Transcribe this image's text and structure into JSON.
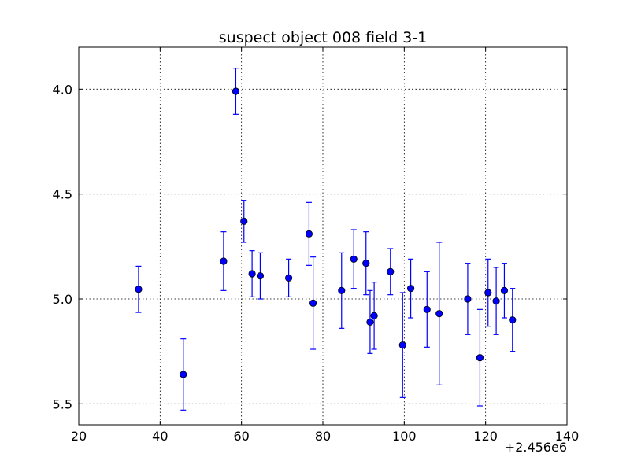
{
  "chart_data": {
    "type": "scatter",
    "title": "suspect object 008 field 3-1",
    "xlabel": "",
    "ylabel": "",
    "x_offset_label": "+2.456e6",
    "xlim": [
      20,
      140
    ],
    "ylim": [
      5.6,
      3.8
    ],
    "y_inverted": true,
    "grid": true,
    "x_ticks": [
      20,
      40,
      60,
      80,
      100,
      120,
      140
    ],
    "y_ticks": [
      4.0,
      4.5,
      5.0,
      5.5
    ],
    "x_tick_labels": [
      "20",
      "40",
      "60",
      "80",
      "100",
      "120",
      "140"
    ],
    "y_tick_labels": [
      "4.0",
      "4.5",
      "5.0",
      "5.5"
    ],
    "marker_color": "#0000ff",
    "points": [
      {
        "x": 34.7,
        "y": 4.954,
        "err": 0.11
      },
      {
        "x": 45.7,
        "y": 5.36,
        "err": 0.17
      },
      {
        "x": 55.6,
        "y": 4.82,
        "err": 0.14
      },
      {
        "x": 58.6,
        "y": 4.01,
        "err": 0.11
      },
      {
        "x": 60.6,
        "y": 4.63,
        "err": 0.1
      },
      {
        "x": 62.6,
        "y": 4.88,
        "err": 0.11
      },
      {
        "x": 64.6,
        "y": 4.89,
        "err": 0.11
      },
      {
        "x": 71.6,
        "y": 4.9,
        "err": 0.09
      },
      {
        "x": 76.6,
        "y": 4.69,
        "err": 0.15
      },
      {
        "x": 77.6,
        "y": 5.02,
        "err": 0.22
      },
      {
        "x": 84.6,
        "y": 4.96,
        "err": 0.18
      },
      {
        "x": 87.6,
        "y": 4.81,
        "err": 0.14
      },
      {
        "x": 90.6,
        "y": 4.83,
        "err": 0.15
      },
      {
        "x": 91.6,
        "y": 5.11,
        "err": 0.15
      },
      {
        "x": 92.6,
        "y": 5.08,
        "err": 0.16
      },
      {
        "x": 96.6,
        "y": 4.87,
        "err": 0.11
      },
      {
        "x": 99.6,
        "y": 5.22,
        "err": 0.25
      },
      {
        "x": 101.6,
        "y": 4.95,
        "err": 0.14
      },
      {
        "x": 105.6,
        "y": 5.05,
        "err": 0.18
      },
      {
        "x": 108.6,
        "y": 5.07,
        "err": 0.34
      },
      {
        "x": 115.6,
        "y": 5.0,
        "err": 0.17
      },
      {
        "x": 118.6,
        "y": 5.28,
        "err": 0.23
      },
      {
        "x": 120.6,
        "y": 4.97,
        "err": 0.16
      },
      {
        "x": 122.6,
        "y": 5.01,
        "err": 0.16
      },
      {
        "x": 124.6,
        "y": 4.96,
        "err": 0.13
      },
      {
        "x": 126.6,
        "y": 5.1,
        "err": 0.15
      }
    ]
  }
}
